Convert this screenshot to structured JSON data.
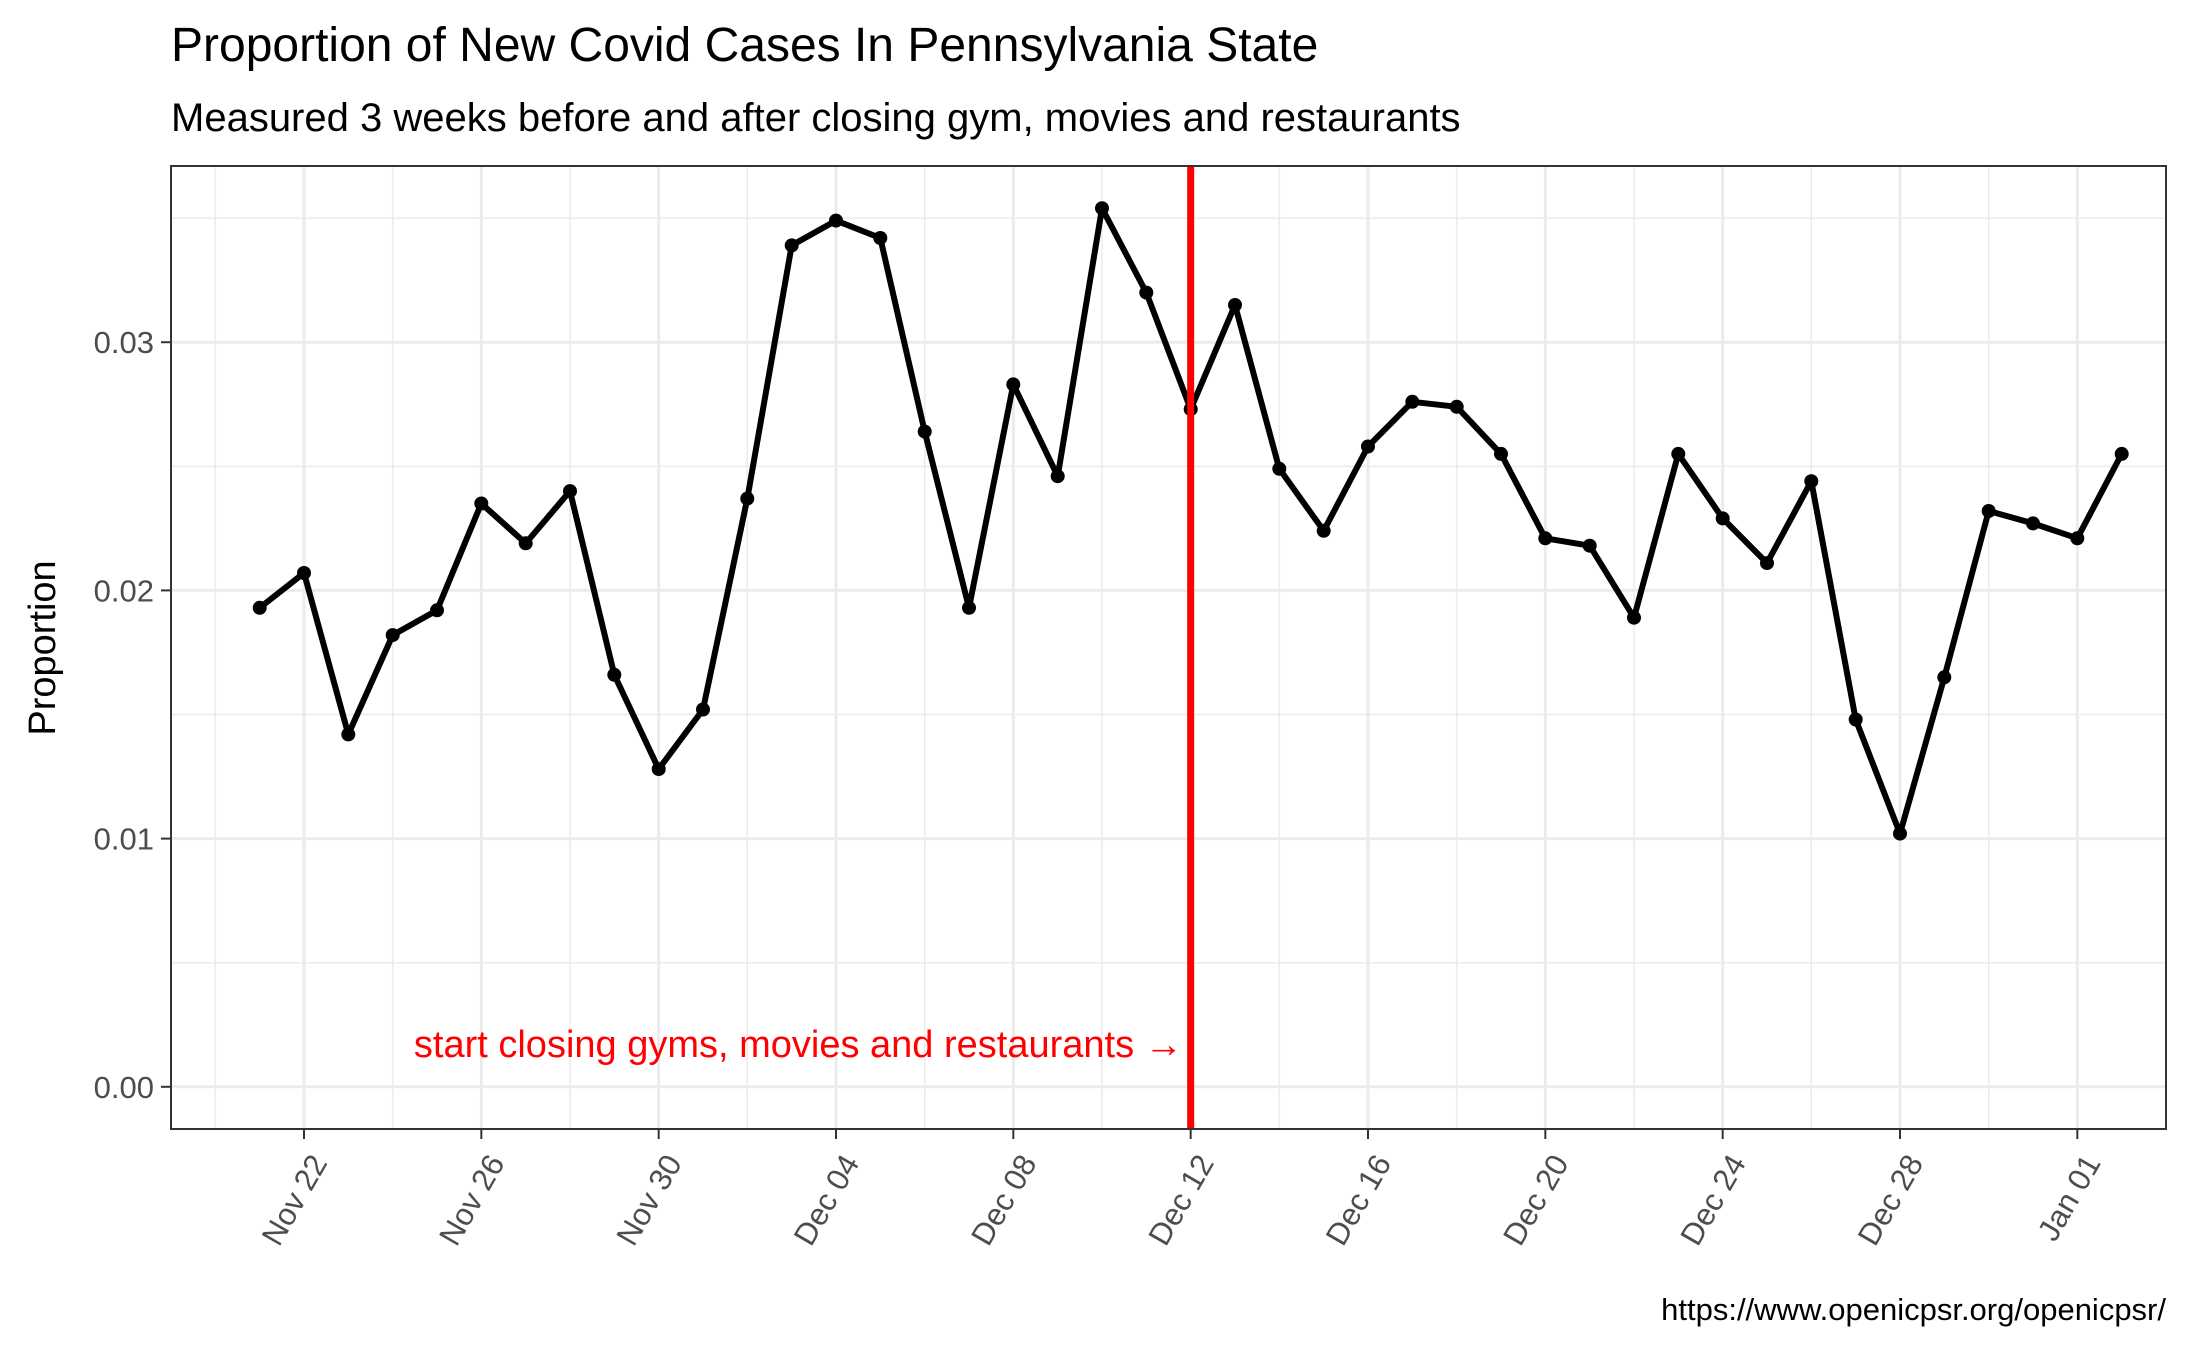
{
  "chart_data": {
    "type": "line",
    "title": "Proportion of New Covid Cases In Pennsylvania State",
    "subtitle": "Measured 3 weeks before and after closing gym, movies and restaurants",
    "xlabel": "",
    "ylabel": "Proportion",
    "caption": "https://www.openicpsr.org/openicpsr/",
    "xlim": [
      "2020-11-19",
      "2021-01-03"
    ],
    "ylim": [
      -0.0017,
      0.0371
    ],
    "y_ticks": [
      0.0,
      0.01,
      0.02,
      0.03
    ],
    "y_tick_labels": [
      "0.00",
      "0.01",
      "0.02",
      "0.03"
    ],
    "x_ticks": [
      "2020-11-22",
      "2020-11-26",
      "2020-11-30",
      "2020-12-04",
      "2020-12-08",
      "2020-12-12",
      "2020-12-16",
      "2020-12-20",
      "2020-12-24",
      "2020-12-28",
      "2021-01-01"
    ],
    "x_tick_labels": [
      "Nov 22",
      "Nov 26",
      "Nov 30",
      "Dec 04",
      "Dec 08",
      "Dec 12",
      "Dec 16",
      "Dec 20",
      "Dec 24",
      "Dec 28",
      "Jan 01"
    ],
    "grid": true,
    "line_color": "#000000",
    "series": [
      {
        "x": [
          "2020-11-21",
          "2020-11-22",
          "2020-11-23",
          "2020-11-24",
          "2020-11-25",
          "2020-11-26",
          "2020-11-27",
          "2020-11-28",
          "2020-11-29",
          "2020-11-30",
          "2020-12-01",
          "2020-12-02",
          "2020-12-03",
          "2020-12-04",
          "2020-12-05",
          "2020-12-06",
          "2020-12-07",
          "2020-12-08",
          "2020-12-09",
          "2020-12-10",
          "2020-12-11",
          "2020-12-12",
          "2020-12-13",
          "2020-12-14",
          "2020-12-15",
          "2020-12-16",
          "2020-12-17",
          "2020-12-18",
          "2020-12-19",
          "2020-12-20",
          "2020-12-21",
          "2020-12-22",
          "2020-12-23",
          "2020-12-24",
          "2020-12-25",
          "2020-12-26",
          "2020-12-27",
          "2020-12-28",
          "2020-12-29",
          "2020-12-30",
          "2020-12-31",
          "2021-01-01",
          "2021-01-02"
        ],
        "values": [
          0.0193,
          0.0207,
          0.0142,
          0.0182,
          0.0192,
          0.0235,
          0.0219,
          0.024,
          0.0166,
          0.0128,
          0.0152,
          0.0237,
          0.0339,
          0.0349,
          0.0342,
          0.0264,
          0.0193,
          0.0283,
          0.0246,
          0.0354,
          0.032,
          0.0273,
          0.0315,
          0.0249,
          0.0224,
          0.0258,
          0.0276,
          0.0274,
          0.0255,
          0.0221,
          0.0218,
          0.0189,
          0.0255,
          0.0229,
          0.0211,
          0.0244,
          0.0148,
          0.0102,
          0.0165,
          0.0232,
          0.0227,
          0.0221,
          0.0255
        ]
      }
    ],
    "vline": {
      "x": "2020-12-12",
      "color": "#ff0000",
      "label": "start closing gyms, movies and restaurants →",
      "label_y": 0.0012
    }
  }
}
